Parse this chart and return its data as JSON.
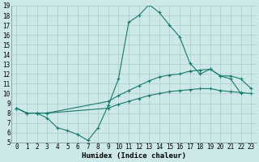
{
  "xlabel": "Humidex (Indice chaleur)",
  "background_color": "#cce8e8",
  "grid_color": "#aacccc",
  "line_color": "#1a7a6a",
  "xlim": [
    -0.5,
    23.5
  ],
  "ylim": [
    5,
    19
  ],
  "xticks": [
    0,
    1,
    2,
    3,
    4,
    5,
    6,
    7,
    8,
    9,
    10,
    11,
    12,
    13,
    14,
    15,
    16,
    17,
    18,
    19,
    20,
    21,
    22,
    23
  ],
  "yticks": [
    5,
    6,
    7,
    8,
    9,
    10,
    11,
    12,
    13,
    14,
    15,
    16,
    17,
    18,
    19
  ],
  "lines": [
    {
      "x": [
        0,
        1,
        2,
        3,
        4,
        5,
        6,
        7,
        8,
        9,
        10,
        11,
        12,
        13,
        14,
        15,
        16,
        17,
        18,
        19,
        20,
        21,
        22
      ],
      "y": [
        8.5,
        8.0,
        8.0,
        7.5,
        6.5,
        6.2,
        5.8,
        5.2,
        6.5,
        8.8,
        11.5,
        17.3,
        18.0,
        19.1,
        18.3,
        17.0,
        15.8,
        13.1,
        12.0,
        12.5,
        11.8,
        11.5,
        10.0
      ]
    },
    {
      "x": [
        0,
        1,
        2,
        3,
        9,
        10,
        11,
        12,
        13,
        14,
        15,
        16,
        17,
        18,
        19,
        20,
        21,
        22,
        23
      ],
      "y": [
        8.5,
        8.0,
        8.0,
        8.0,
        9.2,
        9.8,
        10.3,
        10.8,
        11.3,
        11.7,
        11.9,
        12.0,
        12.3,
        12.4,
        12.5,
        11.8,
        11.8,
        11.5,
        10.5
      ]
    },
    {
      "x": [
        0,
        1,
        2,
        3,
        9,
        10,
        11,
        12,
        13,
        14,
        15,
        16,
        17,
        18,
        19,
        20,
        21,
        22,
        23
      ],
      "y": [
        8.5,
        8.0,
        8.0,
        8.0,
        8.5,
        8.9,
        9.2,
        9.5,
        9.8,
        10.0,
        10.2,
        10.3,
        10.4,
        10.5,
        10.5,
        10.3,
        10.2,
        10.1,
        10.0
      ]
    }
  ],
  "xlabel_fontsize": 6.5,
  "tick_fontsize": 5.5
}
